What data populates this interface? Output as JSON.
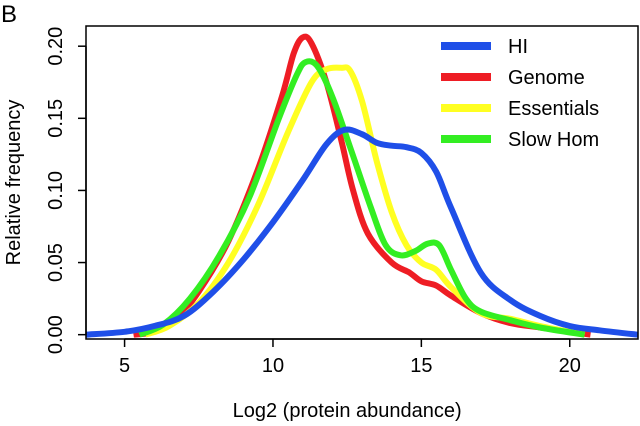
{
  "panel_label": "B",
  "chart_data": {
    "type": "line",
    "title": "",
    "xlabel": "Log2 (protein abundance)",
    "ylabel": "Relative frequency",
    "xlim": [
      3.7,
      22.3
    ],
    "ylim": [
      -0.003,
      0.214
    ],
    "xticks": [
      5,
      10,
      15,
      20
    ],
    "xtick_labels": [
      "5",
      "10",
      "15",
      "20"
    ],
    "yticks": [
      0.0,
      0.05,
      0.1,
      0.15,
      0.2
    ],
    "ytick_labels": [
      "0.00",
      "0.05",
      "0.10",
      "0.15",
      "0.20"
    ],
    "grid": false,
    "legend_position": "top-right",
    "series": [
      {
        "name": "HI",
        "color": "#1f4fe8",
        "x": [
          3.7,
          5,
          6,
          7,
          8,
          9,
          10,
          11,
          11.8,
          12.4,
          13,
          13.5,
          14,
          14.5,
          15,
          15.5,
          16,
          17,
          18,
          19,
          20,
          21,
          22.3
        ],
        "y": [
          0.0,
          0.002,
          0.006,
          0.013,
          0.03,
          0.052,
          0.078,
          0.107,
          0.132,
          0.142,
          0.139,
          0.133,
          0.131,
          0.13,
          0.126,
          0.113,
          0.088,
          0.043,
          0.024,
          0.013,
          0.006,
          0.003,
          0.0
        ]
      },
      {
        "name": "Genome",
        "color": "#ee1d24",
        "x": [
          5.3,
          6,
          6.7,
          7.5,
          8.5,
          9.5,
          10.3,
          10.7,
          11,
          11.3,
          11.8,
          12.3,
          12.7,
          13.2,
          14,
          14.6,
          15,
          15.5,
          16,
          17,
          18,
          19,
          20,
          20.7
        ],
        "y": [
          0.0,
          0.002,
          0.01,
          0.03,
          0.065,
          0.115,
          0.165,
          0.195,
          0.206,
          0.202,
          0.175,
          0.135,
          0.1,
          0.07,
          0.05,
          0.043,
          0.037,
          0.034,
          0.027,
          0.015,
          0.008,
          0.005,
          0.002,
          0.0
        ]
      },
      {
        "name": "Essentials",
        "color": "#ffff22",
        "x": [
          5.7,
          6.5,
          7.5,
          8.5,
          9.5,
          10.5,
          11.3,
          11.8,
          12.3,
          12.6,
          13,
          13.5,
          14,
          14.5,
          15,
          15.5,
          16,
          17,
          18,
          19,
          20.5
        ],
        "y": [
          0.0,
          0.006,
          0.022,
          0.05,
          0.09,
          0.14,
          0.175,
          0.184,
          0.185,
          0.183,
          0.162,
          0.12,
          0.085,
          0.062,
          0.05,
          0.045,
          0.033,
          0.015,
          0.011,
          0.006,
          0.0
        ]
      },
      {
        "name": "Slow Hom",
        "color": "#33ee22",
        "x": [
          5.5,
          6.3,
          7.2,
          8.2,
          9.2,
          10.2,
          10.8,
          11.1,
          11.5,
          12,
          12.6,
          13.3,
          13.8,
          14.3,
          14.8,
          15.2,
          15.6,
          16,
          16.5,
          17,
          18,
          19,
          20.5
        ],
        "y": [
          0.0,
          0.007,
          0.025,
          0.055,
          0.095,
          0.15,
          0.18,
          0.189,
          0.186,
          0.165,
          0.13,
          0.088,
          0.062,
          0.055,
          0.058,
          0.063,
          0.062,
          0.045,
          0.025,
          0.016,
          0.01,
          0.005,
          0.0
        ]
      }
    ]
  }
}
